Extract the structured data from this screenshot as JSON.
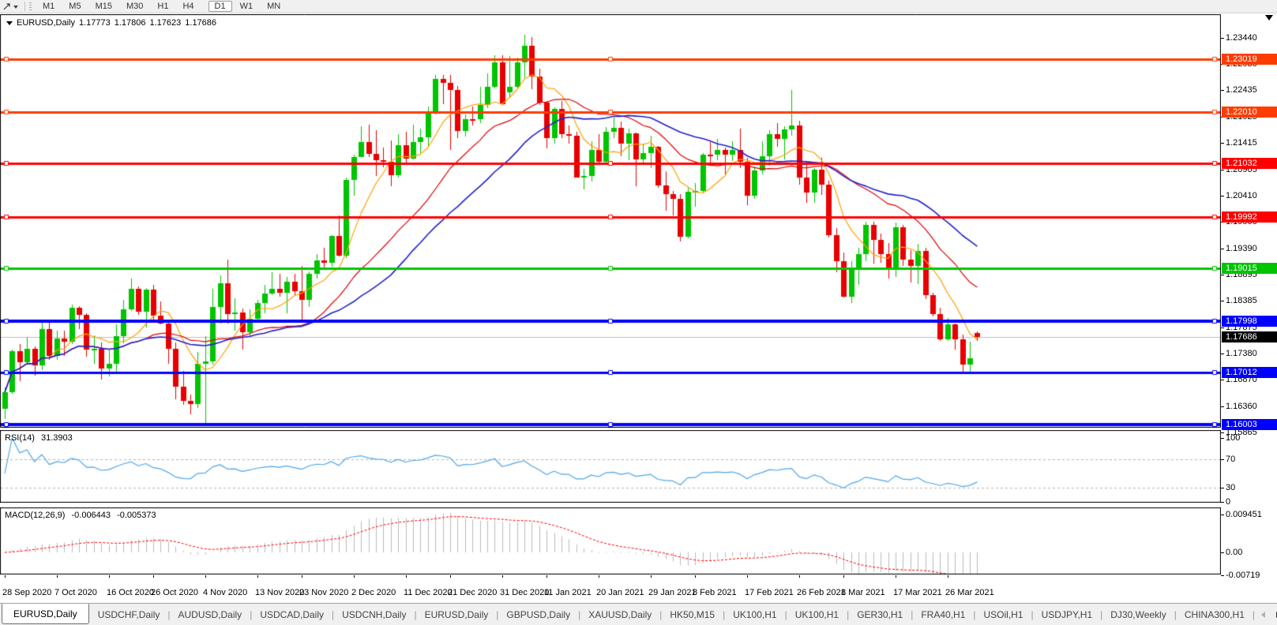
{
  "toolbar": {
    "timeframes": [
      "M1",
      "M5",
      "M15",
      "M30",
      "H1",
      "H4",
      "D1",
      "W1",
      "MN"
    ],
    "active_timeframe": "D1"
  },
  "chart_header": {
    "symbol": "EURUSD,Daily",
    "open": "1.17773",
    "high": "1.17806",
    "low": "1.17623",
    "close": "1.17686"
  },
  "indicator_rsi": {
    "label": "RSI(14)",
    "value": "31.3903",
    "scale_ticks": [
      "100",
      "70",
      "30",
      "0"
    ],
    "scale_values": [
      100,
      70,
      30,
      0
    ]
  },
  "indicator_macd": {
    "label": "MACD(12,26,9)",
    "main_value": "-0.006443",
    "signal_value": "-0.005373",
    "scale_ticks": [
      "0.009451",
      "0.00",
      "-0.00719"
    ],
    "scale_values": [
      0.009451,
      0,
      -0.00719
    ]
  },
  "tabs": {
    "active": "EURUSD,Daily",
    "inactive": [
      "USDCHF,Daily",
      "AUDUSD,Daily",
      "USDCAD,Daily",
      "USDCNH,Daily",
      "EURUSD,Daily",
      "GBPUSD,Daily",
      "XAUUSD,Daily",
      "HK50,M15",
      "UK100,H1",
      "UK100,H1",
      "GER30,H1",
      "FRA40,H1",
      "USOil,H1",
      "USDJPY,H1",
      "DJ30,Weekly",
      "CHINA300,H1"
    ]
  },
  "chart_data": {
    "type": "candlestick",
    "title": "EURUSD,Daily",
    "up_color": "#00C400",
    "down_color": "#E80000",
    "y_ticks": [
      "1.23440",
      "1.22930",
      "1.22435",
      "1.21925",
      "1.21415",
      "1.20905",
      "1.20410",
      "1.19900",
      "1.19390",
      "1.18895",
      "1.18385",
      "1.17875",
      "1.17380",
      "1.16870",
      "1.16360",
      "1.15865"
    ],
    "x_ticks": [
      {
        "i": 0,
        "label": "28 Sep 2020"
      },
      {
        "i": 7,
        "label": "7 Oct 2020"
      },
      {
        "i": 14,
        "label": "16 Oct 2020"
      },
      {
        "i": 20,
        "label": "26 Oct 2020"
      },
      {
        "i": 27,
        "label": "4 Nov 2020"
      },
      {
        "i": 34,
        "label": "13 Nov 2020"
      },
      {
        "i": 40,
        "label": "23 Nov 2020"
      },
      {
        "i": 47,
        "label": "2 Dec 2020"
      },
      {
        "i": 54,
        "label": "11 Dec 2020"
      },
      {
        "i": 60,
        "label": "21 Dec 2020"
      },
      {
        "i": 67,
        "label": "31 Dec 2020"
      },
      {
        "i": 73,
        "label": "11 Jan 2021"
      },
      {
        "i": 80,
        "label": "20 Jan 2021"
      },
      {
        "i": 87,
        "label": "29 Jan 2021"
      },
      {
        "i": 93,
        "label": "8 Feb 2021"
      },
      {
        "i": 100,
        "label": "17 Feb 2021"
      },
      {
        "i": 107,
        "label": "26 Feb 2021"
      },
      {
        "i": 113,
        "label": "8 Mar 2021"
      },
      {
        "i": 120,
        "label": "17 Mar 2021"
      },
      {
        "i": 127,
        "label": "26 Mar 2021"
      }
    ],
    "candles": [
      [
        1.1631,
        1.1672,
        1.1612,
        1.1663
      ],
      [
        1.1663,
        1.1745,
        1.166,
        1.1742
      ],
      [
        1.1742,
        1.1755,
        1.1684,
        1.1721
      ],
      [
        1.1721,
        1.1769,
        1.1717,
        1.1747
      ],
      [
        1.1747,
        1.1751,
        1.1695,
        1.1715
      ],
      [
        1.1715,
        1.1797,
        1.1705,
        1.1784
      ],
      [
        1.1784,
        1.1798,
        1.1725,
        1.1733
      ],
      [
        1.1733,
        1.1781,
        1.1725,
        1.1766
      ],
      [
        1.1766,
        1.1781,
        1.1733,
        1.176
      ],
      [
        1.176,
        1.1831,
        1.1755,
        1.1826
      ],
      [
        1.1826,
        1.1829,
        1.1785,
        1.1812
      ],
      [
        1.1812,
        1.1815,
        1.1731,
        1.1745
      ],
      [
        1.1745,
        1.1772,
        1.1718,
        1.1746
      ],
      [
        1.1746,
        1.1758,
        1.1688,
        1.1708
      ],
      [
        1.1708,
        1.1746,
        1.1694,
        1.1718
      ],
      [
        1.1718,
        1.1794,
        1.1702,
        1.177
      ],
      [
        1.177,
        1.184,
        1.1757,
        1.1822
      ],
      [
        1.1822,
        1.1881,
        1.182,
        1.1862
      ],
      [
        1.1862,
        1.1866,
        1.1811,
        1.1817
      ],
      [
        1.1817,
        1.1863,
        1.1787,
        1.186
      ],
      [
        1.186,
        1.187,
        1.1802,
        1.181
      ],
      [
        1.181,
        1.1837,
        1.1793,
        1.1795
      ],
      [
        1.1795,
        1.18,
        1.1718,
        1.1746
      ],
      [
        1.1746,
        1.1759,
        1.165,
        1.1674
      ],
      [
        1.1674,
        1.1704,
        1.1639,
        1.1646
      ],
      [
        1.1646,
        1.1658,
        1.1621,
        1.1641
      ],
      [
        1.1641,
        1.174,
        1.1633,
        1.1717
      ],
      [
        1.1717,
        1.1771,
        1.1603,
        1.1723
      ],
      [
        1.1723,
        1.1861,
        1.1716,
        1.1827
      ],
      [
        1.1827,
        1.1888,
        1.1795,
        1.1873
      ],
      [
        1.1873,
        1.1918,
        1.1795,
        1.1813
      ],
      [
        1.1813,
        1.1843,
        1.1781,
        1.1816
      ],
      [
        1.1816,
        1.1824,
        1.1745,
        1.1779
      ],
      [
        1.1779,
        1.1823,
        1.1771,
        1.1804
      ],
      [
        1.1804,
        1.184,
        1.1799,
        1.1834
      ],
      [
        1.1834,
        1.1869,
        1.1814,
        1.1853
      ],
      [
        1.1853,
        1.1894,
        1.1849,
        1.1862
      ],
      [
        1.1862,
        1.1891,
        1.1847,
        1.1854
      ],
      [
        1.1854,
        1.1884,
        1.1815,
        1.1875
      ],
      [
        1.1875,
        1.189,
        1.1849,
        1.1857
      ],
      [
        1.1857,
        1.1906,
        1.18,
        1.184
      ],
      [
        1.184,
        1.1895,
        1.1827,
        1.1891
      ],
      [
        1.1891,
        1.1929,
        1.1881,
        1.1916
      ],
      [
        1.1916,
        1.1941,
        1.1903,
        1.1912
      ],
      [
        1.1912,
        1.1965,
        1.1904,
        1.1963
      ],
      [
        1.1963,
        1.2003,
        1.1924,
        1.1926
      ],
      [
        1.1926,
        1.2076,
        1.1921,
        1.2071
      ],
      [
        1.2071,
        1.2119,
        1.204,
        1.2115
      ],
      [
        1.2115,
        1.2174,
        1.2114,
        1.2143
      ],
      [
        1.2143,
        1.2177,
        1.2115,
        1.2121
      ],
      [
        1.2121,
        1.2166,
        1.2079,
        1.2109
      ],
      [
        1.2109,
        1.2133,
        1.2095,
        1.2106
      ],
      [
        1.2106,
        1.2147,
        1.2058,
        1.208
      ],
      [
        1.208,
        1.2158,
        1.2076,
        1.2138
      ],
      [
        1.2138,
        1.2163,
        1.2104,
        1.2112
      ],
      [
        1.2112,
        1.2177,
        1.211,
        1.2144
      ],
      [
        1.2144,
        1.2169,
        1.2122,
        1.2152
      ],
      [
        1.2152,
        1.2211,
        1.2134,
        1.2199
      ],
      [
        1.2199,
        1.2272,
        1.2197,
        1.2265
      ],
      [
        1.2265,
        1.2272,
        1.2217,
        1.2257
      ],
      [
        1.2257,
        1.2272,
        1.2129,
        1.2243
      ],
      [
        1.2243,
        1.2251,
        1.2151,
        1.2164
      ],
      [
        1.2164,
        1.2196,
        1.2154,
        1.2188
      ],
      [
        1.2188,
        1.2212,
        1.2176,
        1.2187
      ],
      [
        1.2187,
        1.225,
        1.218,
        1.2214
      ],
      [
        1.2214,
        1.2275,
        1.2208,
        1.225
      ],
      [
        1.225,
        1.231,
        1.2246,
        1.2297
      ],
      [
        1.2297,
        1.231,
        1.2214,
        1.2216
      ],
      [
        1.2239,
        1.2309,
        1.2228,
        1.2249
      ],
      [
        1.2249,
        1.2306,
        1.2247,
        1.2297
      ],
      [
        1.2297,
        1.2349,
        1.2266,
        1.2328
      ],
      [
        1.2328,
        1.2345,
        1.2245,
        1.227
      ],
      [
        1.227,
        1.2285,
        1.2214,
        1.222
      ],
      [
        1.222,
        1.2223,
        1.2132,
        1.2151
      ],
      [
        1.2151,
        1.221,
        1.214,
        1.2207
      ],
      [
        1.2207,
        1.2223,
        1.2151,
        1.2158
      ],
      [
        1.2158,
        1.2176,
        1.2141,
        1.2155
      ],
      [
        1.2155,
        1.2163,
        1.2075,
        1.2076
      ],
      [
        1.2076,
        1.2092,
        1.2053,
        1.2078
      ],
      [
        1.2078,
        1.2145,
        1.2067,
        1.2129
      ],
      [
        1.2129,
        1.2158,
        1.2102,
        1.2105
      ],
      [
        1.2105,
        1.2173,
        1.2104,
        1.2163
      ],
      [
        1.2163,
        1.219,
        1.2151,
        1.2171
      ],
      [
        1.2171,
        1.2183,
        1.2116,
        1.214
      ],
      [
        1.214,
        1.217,
        1.2108,
        1.216
      ],
      [
        1.216,
        1.2162,
        1.2059,
        1.211
      ],
      [
        1.211,
        1.2141,
        1.2101,
        1.2123
      ],
      [
        1.2123,
        1.2156,
        1.2093,
        1.2135
      ],
      [
        1.2135,
        1.2136,
        1.2056,
        1.206
      ],
      [
        1.206,
        1.2087,
        1.2012,
        1.2043
      ],
      [
        1.2043,
        1.205,
        1.2003,
        1.2035
      ],
      [
        1.2035,
        1.2043,
        1.1952,
        1.1962
      ],
      [
        1.1962,
        1.2055,
        1.1958,
        1.2048
      ],
      [
        1.2048,
        1.2064,
        1.2019,
        1.205
      ],
      [
        1.205,
        1.2123,
        1.2046,
        1.212
      ],
      [
        1.212,
        1.2144,
        1.2102,
        1.2119
      ],
      [
        1.2119,
        1.215,
        1.2108,
        1.2129
      ],
      [
        1.2129,
        1.2133,
        1.2082,
        1.212
      ],
      [
        1.212,
        1.2145,
        1.2107,
        1.2129
      ],
      [
        1.2129,
        1.217,
        1.2094,
        1.2105
      ],
      [
        1.2105,
        1.2113,
        1.2023,
        1.204
      ],
      [
        1.204,
        1.2097,
        1.2034,
        1.2089
      ],
      [
        1.2089,
        1.2145,
        1.2082,
        1.2117
      ],
      [
        1.2117,
        1.2167,
        1.2098,
        1.2158
      ],
      [
        1.2158,
        1.218,
        1.2135,
        1.215
      ],
      [
        1.215,
        1.2174,
        1.211,
        1.2168
      ],
      [
        1.2168,
        1.2243,
        1.2156,
        1.2175
      ],
      [
        1.2175,
        1.2184,
        1.2061,
        1.2075
      ],
      [
        1.2075,
        1.2101,
        1.2027,
        1.2047
      ],
      [
        1.2047,
        1.2094,
        1.2027,
        1.2091
      ],
      [
        1.2091,
        1.2113,
        1.2042,
        1.2062
      ],
      [
        1.2062,
        1.2069,
        1.196,
        1.1965
      ],
      [
        1.1965,
        1.1978,
        1.1894,
        1.1915
      ],
      [
        1.1915,
        1.1932,
        1.1845,
        1.1847
      ],
      [
        1.1847,
        1.1915,
        1.1835,
        1.1899
      ],
      [
        1.1899,
        1.1941,
        1.1869,
        1.1928
      ],
      [
        1.1928,
        1.199,
        1.1914,
        1.1985
      ],
      [
        1.1985,
        1.199,
        1.191,
        1.1955
      ],
      [
        1.1955,
        1.1968,
        1.1911,
        1.1929
      ],
      [
        1.1929,
        1.195,
        1.1882,
        1.1899
      ],
      [
        1.1899,
        1.1989,
        1.1885,
        1.198
      ],
      [
        1.198,
        1.1984,
        1.1906,
        1.1917
      ],
      [
        1.1917,
        1.1936,
        1.1874,
        1.1905
      ],
      [
        1.1905,
        1.1948,
        1.1871,
        1.1934
      ],
      [
        1.1934,
        1.1941,
        1.1842,
        1.1849
      ],
      [
        1.1849,
        1.1854,
        1.1809,
        1.1813
      ],
      [
        1.1813,
        1.1825,
        1.1761,
        1.1765
      ],
      [
        1.1765,
        1.1805,
        1.1761,
        1.1793
      ],
      [
        1.1793,
        1.1795,
        1.1745,
        1.1765
      ],
      [
        1.1765,
        1.1774,
        1.1703,
        1.1716
      ],
      [
        1.1716,
        1.176,
        1.17,
        1.1729
      ],
      [
        1.17773,
        1.17806,
        1.17623,
        1.17686
      ]
    ],
    "moving_averages": [
      {
        "type": "sma",
        "period": 7,
        "color": "#FFA000"
      },
      {
        "type": "sma",
        "period": 20,
        "color": "#E00000"
      },
      {
        "type": "sma",
        "period": 30,
        "color": "#2222CC"
      }
    ],
    "h_lines": [
      {
        "price": 1.23019,
        "label": "1.23019",
        "color": "#FF3C00",
        "width": 3
      },
      {
        "price": 1.2201,
        "label": "1.22010",
        "color": "#FF3C00",
        "width": 3
      },
      {
        "price": 1.21032,
        "label": "1.21032",
        "color": "#FF0000",
        "width": 3
      },
      {
        "price": 1.19992,
        "label": "1.19992",
        "color": "#FF0000",
        "width": 3
      },
      {
        "price": 1.19015,
        "label": "1.19015",
        "color": "#00C400",
        "width": 3
      },
      {
        "price": 1.17998,
        "label": "1.17998",
        "color": "#0000FF",
        "width": 4
      },
      {
        "price": 1.17012,
        "label": "1.17012",
        "color": "#0000FF",
        "width": 3
      },
      {
        "price": 1.16003,
        "label": "1.16003",
        "color": "#0000FF",
        "width": 4
      }
    ],
    "current_price": {
      "price": 1.17686,
      "label": "1.17686",
      "line_color": "#C0C0C0",
      "badge_color": "#000000"
    },
    "rsi": {
      "period": 14,
      "color": "#4DA6E8",
      "levels": [
        70,
        30
      ],
      "level_color": "#B4B4B4"
    },
    "macd": {
      "fast": 12,
      "slow": 26,
      "signal": 9,
      "hist_color": "#BBBBBB",
      "signal_color": "#FF0000"
    }
  }
}
